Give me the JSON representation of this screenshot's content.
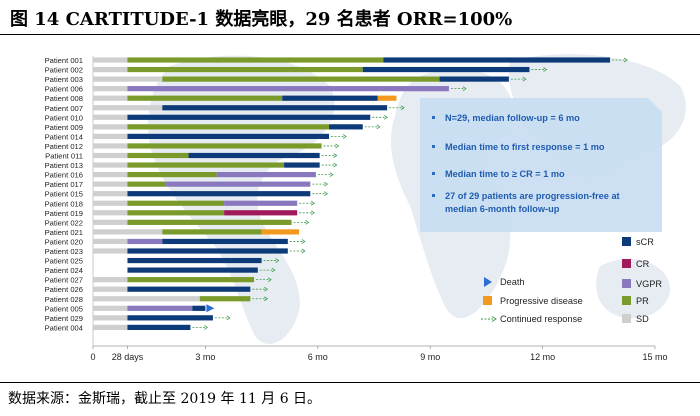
{
  "header": {
    "title": "图 14   CARTITUDE-1 数据亮眼，29 名患者 ORR=100%"
  },
  "footer": {
    "source": "数据来源：金斯瑞，截止至 2019 年 11 月 6 日。"
  },
  "chart_data": {
    "type": "swimmer",
    "x_unit": "months",
    "xlim": [
      0,
      15
    ],
    "x_ticks": [
      {
        "value": 0,
        "label": "0"
      },
      {
        "value": 0.92,
        "label": "28 days"
      },
      {
        "value": 3,
        "label": "3 mo"
      },
      {
        "value": 6,
        "label": "6 mo"
      },
      {
        "value": 9,
        "label": "9 mo"
      },
      {
        "value": 12,
        "label": "12 mo"
      },
      {
        "value": 15,
        "label": "15 mo"
      }
    ],
    "legend": {
      "responses": [
        {
          "key": "sCR",
          "label": "sCR",
          "color": "#0d3a78"
        },
        {
          "key": "CR",
          "label": "CR",
          "color": "#a0195a"
        },
        {
          "key": "VGPR",
          "label": "VGPR",
          "color": "#8a78bf"
        },
        {
          "key": "PR",
          "label": "PR",
          "color": "#7a9a2c"
        },
        {
          "key": "SD",
          "label": "SD",
          "color": "#cfcfcf"
        }
      ],
      "events": [
        {
          "key": "death",
          "label": "Death",
          "color": "#2a6fd6"
        },
        {
          "key": "pd",
          "label": "Progressive disease",
          "color": "#f39a1e"
        },
        {
          "key": "continued",
          "label": "Continued response",
          "color": "#3a9a4a"
        }
      ]
    },
    "annotations": [
      "N=29, median follow-up = 6 mo",
      "Median time to first response = 1 mo",
      "Median time to ≥ CR = 1 mo",
      "27 of 29 patients are progression-free at median 6-month follow-up"
    ],
    "patients": [
      {
        "name": "Patient 001",
        "segments": [
          [
            "SD",
            0,
            0.92
          ],
          [
            "PR",
            0.92,
            7.75
          ],
          [
            "sCR",
            7.75,
            13.8
          ]
        ],
        "end": "continued"
      },
      {
        "name": "Patient 002",
        "segments": [
          [
            "SD",
            0,
            0.92
          ],
          [
            "PR",
            0.92,
            7.2
          ],
          [
            "sCR",
            7.2,
            11.65
          ]
        ],
        "end": "continued"
      },
      {
        "name": "Patient 003",
        "segments": [
          [
            "SD",
            0,
            1.85
          ],
          [
            "PR",
            1.85,
            9.25
          ],
          [
            "sCR",
            9.25,
            11.1
          ]
        ],
        "end": "continued"
      },
      {
        "name": "Patient 006",
        "segments": [
          [
            "SD",
            0,
            0.92
          ],
          [
            "VGPR",
            0.92,
            9.5
          ]
        ],
        "end": "continued"
      },
      {
        "name": "Patient 008",
        "segments": [
          [
            "SD",
            0,
            0.92
          ],
          [
            "PR",
            0.92,
            5.05
          ],
          [
            "sCR",
            5.05,
            7.6
          ],
          [
            "PD",
            7.6,
            8.1
          ]
        ],
        "end": "pd"
      },
      {
        "name": "Patient 007",
        "segments": [
          [
            "SD",
            0,
            1.85
          ],
          [
            "sCR",
            1.85,
            7.85
          ]
        ],
        "end": "continued"
      },
      {
        "name": "Patient 010",
        "segments": [
          [
            "SD",
            0,
            0.92
          ],
          [
            "sCR",
            0.92,
            7.4
          ]
        ],
        "end": "continued"
      },
      {
        "name": "Patient 009",
        "segments": [
          [
            "SD",
            0,
            0.92
          ],
          [
            "PR",
            0.92,
            6.3
          ],
          [
            "sCR",
            6.3,
            7.2
          ]
        ],
        "end": "continued"
      },
      {
        "name": "Patient 014",
        "segments": [
          [
            "SD",
            0,
            0.92
          ],
          [
            "sCR",
            0.92,
            6.3
          ]
        ],
        "end": "continued"
      },
      {
        "name": "Patient 012",
        "segments": [
          [
            "SD",
            0,
            0.92
          ],
          [
            "PR",
            0.92,
            6.1
          ]
        ],
        "end": "continued"
      },
      {
        "name": "Patient 011",
        "segments": [
          [
            "SD",
            0,
            0.92
          ],
          [
            "PR",
            0.92,
            2.55
          ],
          [
            "sCR",
            2.55,
            6.05
          ]
        ],
        "end": "continued"
      },
      {
        "name": "Patient 013",
        "segments": [
          [
            "SD",
            0,
            0.92
          ],
          [
            "PR",
            0.92,
            5.1
          ],
          [
            "sCR",
            5.1,
            6.05
          ]
        ],
        "end": "continued"
      },
      {
        "name": "Patient 016",
        "segments": [
          [
            "SD",
            0,
            0.92
          ],
          [
            "PR",
            0.92,
            3.3
          ],
          [
            "VGPR",
            3.3,
            5.95
          ]
        ],
        "end": "continued"
      },
      {
        "name": "Patient 017",
        "segments": [
          [
            "SD",
            0,
            0.92
          ],
          [
            "PR",
            0.92,
            1.95
          ],
          [
            "VGPR",
            1.95,
            5.8
          ]
        ],
        "end": "continued"
      },
      {
        "name": "Patient 015",
        "segments": [
          [
            "SD",
            0,
            0.92
          ],
          [
            "sCR",
            0.92,
            5.8
          ]
        ],
        "end": "continued"
      },
      {
        "name": "Patient 018",
        "segments": [
          [
            "SD",
            0,
            0.92
          ],
          [
            "PR",
            0.92,
            3.5
          ],
          [
            "VGPR",
            3.5,
            5.45
          ]
        ],
        "end": "continued"
      },
      {
        "name": "Patient 019",
        "segments": [
          [
            "SD",
            0,
            0.92
          ],
          [
            "PR",
            0.92,
            3.5
          ],
          [
            "CR",
            3.5,
            5.45
          ]
        ],
        "end": "continued"
      },
      {
        "name": "Patient 022",
        "segments": [
          [
            "SD",
            0,
            0.92
          ],
          [
            "PR",
            0.92,
            5.3
          ]
        ],
        "end": "continued"
      },
      {
        "name": "Patient 021",
        "segments": [
          [
            "SD",
            0,
            1.85
          ],
          [
            "PR",
            1.85,
            4.5
          ],
          [
            "PD",
            4.5,
            5.5
          ]
        ],
        "end": "pd"
      },
      {
        "name": "Patient 020",
        "segments": [
          [
            "SD",
            0,
            0.92
          ],
          [
            "VGPR",
            0.92,
            1.85
          ],
          [
            "sCR",
            1.85,
            5.2
          ]
        ],
        "end": "continued"
      },
      {
        "name": "Patient 023",
        "segments": [
          [
            "SD",
            0,
            0.92
          ],
          [
            "sCR",
            0.92,
            5.2
          ]
        ],
        "end": "continued"
      },
      {
        "name": "Patient 025",
        "segments": [
          [
            "sCR",
            0.92,
            4.5
          ]
        ],
        "end": "continued"
      },
      {
        "name": "Patient 024",
        "segments": [
          [
            "sCR",
            0.92,
            4.4
          ]
        ],
        "end": "continued"
      },
      {
        "name": "Patient 027",
        "segments": [
          [
            "SD",
            0,
            0.92
          ],
          [
            "PR",
            0.92,
            4.3
          ]
        ],
        "end": "continued"
      },
      {
        "name": "Patient 026",
        "segments": [
          [
            "SD",
            0,
            0.92
          ],
          [
            "sCR",
            0.92,
            4.2
          ]
        ],
        "end": "continued"
      },
      {
        "name": "Patient 028",
        "segments": [
          [
            "SD",
            0,
            2.85
          ],
          [
            "PR",
            2.85,
            4.2
          ]
        ],
        "end": "continued"
      },
      {
        "name": "Patient 005",
        "segments": [
          [
            "SD",
            0,
            0.92
          ],
          [
            "VGPR",
            0.92,
            2.65
          ],
          [
            "sCR",
            2.65,
            3.0
          ]
        ],
        "end": "death"
      },
      {
        "name": "Patient 029",
        "segments": [
          [
            "SD",
            0,
            0.92
          ],
          [
            "sCR",
            0.92,
            3.2
          ]
        ],
        "end": "continued"
      },
      {
        "name": "Patient 004",
        "segments": [
          [
            "SD",
            0,
            0.92
          ],
          [
            "sCR",
            0.92,
            2.6
          ]
        ],
        "end": "continued"
      }
    ]
  }
}
